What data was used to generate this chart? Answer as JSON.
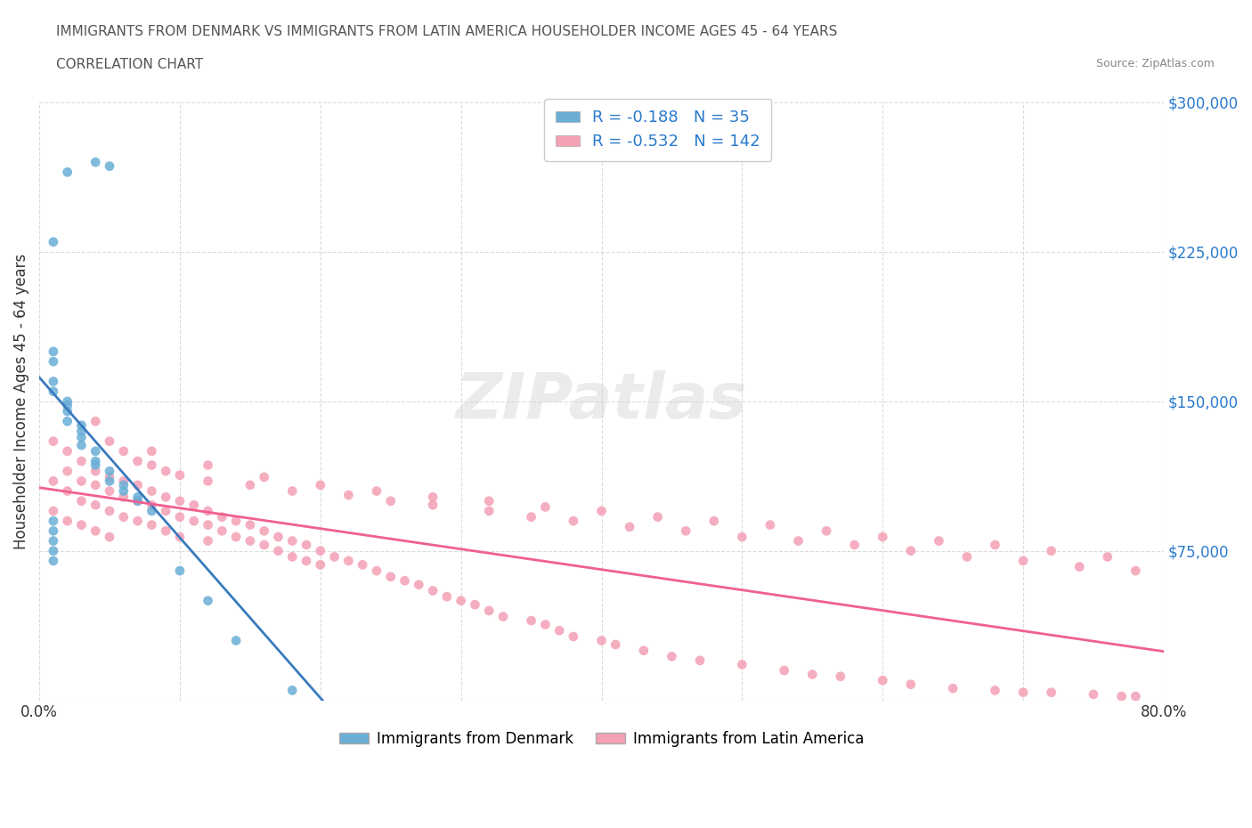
{
  "title_line1": "IMMIGRANTS FROM DENMARK VS IMMIGRANTS FROM LATIN AMERICA HOUSEHOLDER INCOME AGES 45 - 64 YEARS",
  "title_line2": "CORRELATION CHART",
  "source_text": "Source: ZipAtlas.com",
  "xlabel": "",
  "ylabel": "Householder Income Ages 45 - 64 years",
  "xlim": [
    0.0,
    0.8
  ],
  "ylim": [
    0,
    300000
  ],
  "yticks": [
    0,
    75000,
    150000,
    225000,
    300000
  ],
  "ytick_labels": [
    "",
    "$75,000",
    "$150,000",
    "$225,000",
    "$300,000"
  ],
  "xticks": [
    0.0,
    0.1,
    0.2,
    0.3,
    0.4,
    0.5,
    0.6,
    0.7,
    0.8
  ],
  "xtick_labels": [
    "0.0%",
    "",
    "",
    "",
    "",
    "",
    "",
    "",
    "80.0%"
  ],
  "denmark_color": "#6aaed6",
  "latin_color": "#f4a0b5",
  "denmark_line_color": "#3a7abf",
  "latin_line_color": "#f06090",
  "denmark_R": -0.188,
  "denmark_N": 35,
  "latin_R": -0.532,
  "latin_N": 142,
  "watermark": "ZIPatlas",
  "legend_label_denmark": "Immigrants from Denmark",
  "legend_label_latin": "Immigrants from Latin America",
  "denmark_x": [
    0.02,
    0.04,
    0.05,
    0.01,
    0.01,
    0.01,
    0.01,
    0.01,
    0.02,
    0.02,
    0.02,
    0.02,
    0.03,
    0.03,
    0.03,
    0.03,
    0.04,
    0.04,
    0.04,
    0.05,
    0.05,
    0.06,
    0.06,
    0.07,
    0.07,
    0.08,
    0.1,
    0.12,
    0.14,
    0.18,
    0.01,
    0.01,
    0.01,
    0.01,
    0.01
  ],
  "denmark_y": [
    265000,
    270000,
    268000,
    230000,
    175000,
    170000,
    160000,
    155000,
    150000,
    148000,
    145000,
    140000,
    138000,
    135000,
    132000,
    128000,
    125000,
    120000,
    118000,
    115000,
    110000,
    108000,
    105000,
    102000,
    100000,
    95000,
    65000,
    50000,
    30000,
    5000,
    90000,
    85000,
    80000,
    75000,
    70000
  ],
  "latin_x": [
    0.01,
    0.01,
    0.01,
    0.02,
    0.02,
    0.02,
    0.02,
    0.03,
    0.03,
    0.03,
    0.03,
    0.04,
    0.04,
    0.04,
    0.04,
    0.05,
    0.05,
    0.05,
    0.05,
    0.06,
    0.06,
    0.06,
    0.07,
    0.07,
    0.07,
    0.08,
    0.08,
    0.08,
    0.09,
    0.09,
    0.09,
    0.1,
    0.1,
    0.1,
    0.11,
    0.11,
    0.12,
    0.12,
    0.12,
    0.13,
    0.13,
    0.14,
    0.14,
    0.15,
    0.15,
    0.16,
    0.16,
    0.17,
    0.17,
    0.18,
    0.18,
    0.19,
    0.19,
    0.2,
    0.2,
    0.21,
    0.22,
    0.23,
    0.24,
    0.25,
    0.26,
    0.27,
    0.28,
    0.29,
    0.3,
    0.31,
    0.32,
    0.33,
    0.35,
    0.36,
    0.37,
    0.38,
    0.4,
    0.41,
    0.43,
    0.45,
    0.47,
    0.5,
    0.53,
    0.55,
    0.57,
    0.6,
    0.62,
    0.65,
    0.68,
    0.7,
    0.72,
    0.75,
    0.77,
    0.78,
    0.04,
    0.05,
    0.06,
    0.07,
    0.08,
    0.09,
    0.1,
    0.12,
    0.15,
    0.18,
    0.22,
    0.25,
    0.28,
    0.32,
    0.35,
    0.38,
    0.42,
    0.46,
    0.5,
    0.54,
    0.58,
    0.62,
    0.66,
    0.7,
    0.74,
    0.78,
    0.08,
    0.12,
    0.16,
    0.2,
    0.24,
    0.28,
    0.32,
    0.36,
    0.4,
    0.44,
    0.48,
    0.52,
    0.56,
    0.6,
    0.64,
    0.68,
    0.72,
    0.76
  ],
  "latin_y": [
    130000,
    110000,
    95000,
    125000,
    115000,
    105000,
    90000,
    120000,
    110000,
    100000,
    88000,
    115000,
    108000,
    98000,
    85000,
    112000,
    105000,
    95000,
    82000,
    110000,
    102000,
    92000,
    108000,
    100000,
    90000,
    105000,
    98000,
    88000,
    102000,
    95000,
    85000,
    100000,
    92000,
    82000,
    98000,
    90000,
    95000,
    88000,
    80000,
    92000,
    85000,
    90000,
    82000,
    88000,
    80000,
    85000,
    78000,
    82000,
    75000,
    80000,
    72000,
    78000,
    70000,
    75000,
    68000,
    72000,
    70000,
    68000,
    65000,
    62000,
    60000,
    58000,
    55000,
    52000,
    50000,
    48000,
    45000,
    42000,
    40000,
    38000,
    35000,
    32000,
    30000,
    28000,
    25000,
    22000,
    20000,
    18000,
    15000,
    13000,
    12000,
    10000,
    8000,
    6000,
    5000,
    4000,
    4000,
    3000,
    2000,
    2000,
    140000,
    130000,
    125000,
    120000,
    118000,
    115000,
    113000,
    110000,
    108000,
    105000,
    103000,
    100000,
    98000,
    95000,
    92000,
    90000,
    87000,
    85000,
    82000,
    80000,
    78000,
    75000,
    72000,
    70000,
    67000,
    65000,
    125000,
    118000,
    112000,
    108000,
    105000,
    102000,
    100000,
    97000,
    95000,
    92000,
    90000,
    88000,
    85000,
    82000,
    80000,
    78000,
    75000,
    72000
  ]
}
